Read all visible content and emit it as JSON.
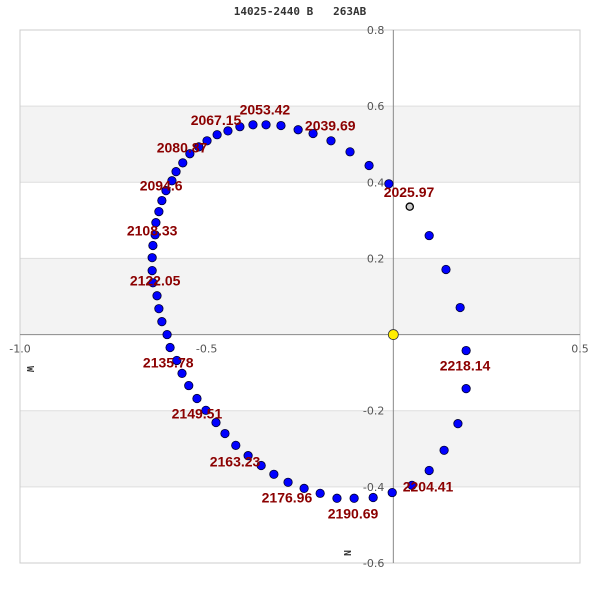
{
  "title": "14025-2440 B   263AB",
  "chart_data": {
    "type": "scatter",
    "title": "14025-2440 B   263AB",
    "xlim": [
      -1.0,
      0.5
    ],
    "ylim": [
      -0.6,
      0.8
    ],
    "x_axis_name": "W",
    "y_axis_name": "N",
    "x_ticks": [
      {
        "value": -1.0,
        "label": "-1.0"
      },
      {
        "value": -0.5,
        "label": "-0.5"
      },
      {
        "value": 0.5,
        "label": "0.5"
      }
    ],
    "y_ticks": [
      {
        "value": 0.8,
        "label": "0.8"
      },
      {
        "value": 0.6,
        "label": "0.6"
      },
      {
        "value": 0.4,
        "label": "0.4"
      },
      {
        "value": 0.2,
        "label": "0.2"
      },
      {
        "value": -0.2,
        "label": "-0.2"
      },
      {
        "value": -0.4,
        "label": "-0.4"
      },
      {
        "value": -0.6,
        "label": "-0.6"
      }
    ],
    "grid": "alternating horizontal bands",
    "colors": {
      "points": "#0000ff",
      "labels": "#8b0000",
      "band": "#f3f3f3",
      "origin": "#ffee00",
      "highlight": "#cccccc"
    },
    "origin": [
      0,
      0
    ],
    "highlighted_point": [
      0.044,
      0.336
    ],
    "points": [
      [
        -0.012,
        0.396
      ],
      [
        -0.065,
        0.444
      ],
      [
        -0.116,
        0.48
      ],
      [
        -0.167,
        0.509
      ],
      [
        -0.215,
        0.528
      ],
      [
        -0.255,
        0.538
      ],
      [
        -0.301,
        0.549
      ],
      [
        -0.341,
        0.551
      ],
      [
        -0.376,
        0.551
      ],
      [
        -0.411,
        0.546
      ],
      [
        -0.443,
        0.535
      ],
      [
        -0.472,
        0.525
      ],
      [
        -0.499,
        0.509
      ],
      [
        -0.521,
        0.493
      ],
      [
        -0.545,
        0.475
      ],
      [
        -0.564,
        0.451
      ],
      [
        -0.582,
        0.428
      ],
      [
        -0.593,
        0.404
      ],
      [
        -0.609,
        0.378
      ],
      [
        -0.62,
        0.352
      ],
      [
        -0.628,
        0.323
      ],
      [
        -0.636,
        0.294
      ],
      [
        -0.638,
        0.262
      ],
      [
        -0.644,
        0.234
      ],
      [
        -0.646,
        0.202
      ],
      [
        -0.646,
        0.168
      ],
      [
        -0.644,
        0.136
      ],
      [
        -0.633,
        0.102
      ],
      [
        -0.628,
        0.068
      ],
      [
        -0.62,
        0.034
      ],
      [
        -0.606,
        0.0
      ],
      [
        -0.598,
        -0.034
      ],
      [
        -0.58,
        -0.068
      ],
      [
        -0.566,
        -0.102
      ],
      [
        -0.548,
        -0.134
      ],
      [
        -0.526,
        -0.168
      ],
      [
        -0.502,
        -0.199
      ],
      [
        -0.475,
        -0.231
      ],
      [
        -0.451,
        -0.26
      ],
      [
        -0.422,
        -0.291
      ],
      [
        -0.389,
        -0.318
      ],
      [
        -0.354,
        -0.344
      ],
      [
        -0.32,
        -0.367
      ],
      [
        -0.282,
        -0.388
      ],
      [
        -0.239,
        -0.404
      ],
      [
        -0.196,
        -0.417
      ],
      [
        -0.151,
        -0.43
      ],
      [
        -0.105,
        -0.43
      ],
      [
        -0.054,
        -0.428
      ],
      [
        -0.003,
        -0.415
      ],
      [
        0.05,
        -0.396
      ],
      [
        0.096,
        -0.357
      ],
      [
        0.136,
        -0.304
      ],
      [
        0.173,
        -0.234
      ],
      [
        0.195,
        -0.142
      ],
      [
        0.195,
        -0.042
      ],
      [
        0.179,
        0.071
      ],
      [
        0.141,
        0.171
      ],
      [
        0.096,
        0.26
      ]
    ],
    "annotations": [
      {
        "text": "2025.97",
        "x": 0.042,
        "y": 0.375
      },
      {
        "text": "2039.69",
        "x": -0.169,
        "y": 0.549
      },
      {
        "text": "2053.42",
        "x": -0.344,
        "y": 0.591
      },
      {
        "text": "2067.15",
        "x": -0.475,
        "y": 0.564
      },
      {
        "text": "2080.87",
        "x": -0.566,
        "y": 0.491
      },
      {
        "text": "2094.6",
        "x": -0.622,
        "y": 0.391
      },
      {
        "text": "2108.33",
        "x": -0.646,
        "y": 0.273
      },
      {
        "text": "2122.05",
        "x": -0.638,
        "y": 0.142
      },
      {
        "text": "2135.78",
        "x": -0.603,
        "y": -0.073
      },
      {
        "text": "2149.51",
        "x": -0.526,
        "y": -0.207
      },
      {
        "text": "2163.23",
        "x": -0.424,
        "y": -0.333
      },
      {
        "text": "2176.96",
        "x": -0.285,
        "y": -0.428
      },
      {
        "text": "2190.69",
        "x": -0.108,
        "y": -0.47
      },
      {
        "text": "2204.41",
        "x": 0.093,
        "y": -0.399
      },
      {
        "text": "2218.14",
        "x": 0.192,
        "y": -0.081
      }
    ]
  }
}
